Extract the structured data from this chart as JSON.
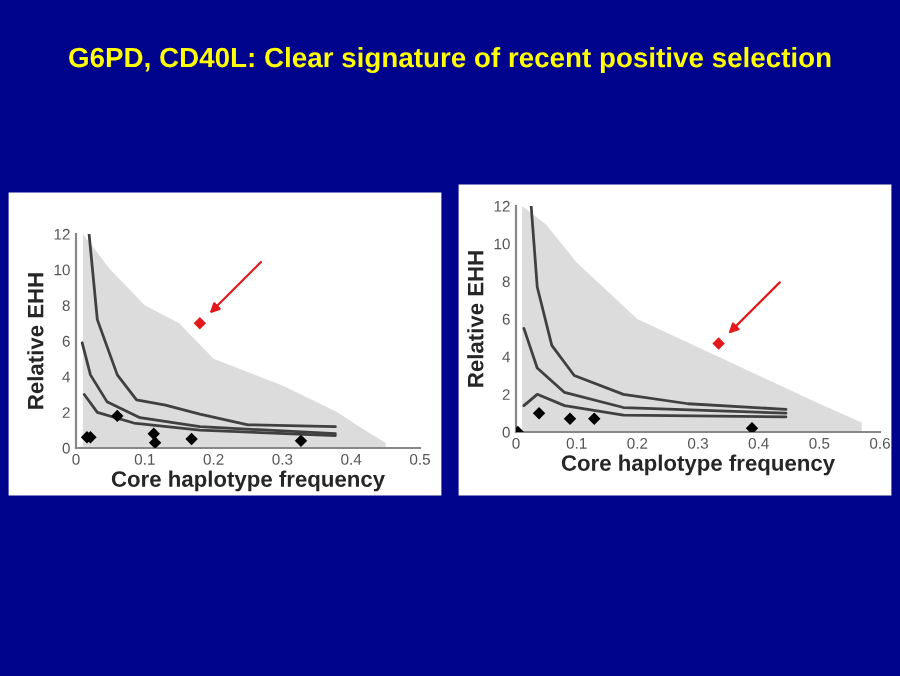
{
  "chart_data": [
    {
      "type": "scatter",
      "title": "G6PD, CD40L: Clear signature of recent positive selection",
      "xlabel": "Core haplotype frequency",
      "ylabel": "Relative EHH",
      "xlim": [
        0,
        0.5
      ],
      "xticks": [
        0,
        0.1,
        0.2,
        0.3,
        0.4,
        0.5
      ],
      "ylim": [
        0,
        12
      ],
      "yticks": [
        0,
        2,
        4,
        6,
        8,
        10,
        12
      ],
      "grid": false,
      "legend": false,
      "series": [
        {
          "type": "area",
          "color": "#dcdcdc",
          "x": [
            0.01,
            0.05,
            0.1,
            0.15,
            0.2,
            0.3,
            0.38,
            0.42,
            0.45
          ],
          "values": [
            12,
            10,
            8,
            7,
            5,
            3.5,
            2,
            1,
            0.3
          ]
        },
        {
          "type": "line",
          "color": "#404040",
          "x": [
            0.019,
            0.031,
            0.06,
            0.088,
            0.13,
            0.18,
            0.25,
            0.377
          ],
          "values": [
            12,
            7.2,
            4.1,
            2.7,
            2.4,
            1.9,
            1.3,
            1.2
          ]
        },
        {
          "type": "line",
          "color": "#404040",
          "x": [
            0.009,
            0.021,
            0.045,
            0.093,
            0.18,
            0.377
          ],
          "values": [
            5.9,
            4.1,
            2.6,
            1.7,
            1.2,
            0.8
          ]
        },
        {
          "type": "line",
          "color": "#404040",
          "x": [
            0.012,
            0.031,
            0.084,
            0.18,
            0.377
          ],
          "values": [
            3.0,
            2.0,
            1.4,
            1.0,
            0.7
          ]
        },
        {
          "type": "scatter",
          "marker": "diamond",
          "color": "#000000",
          "x": [
            0.016,
            0.021,
            0.06,
            0.113,
            0.115,
            0.168,
            0.327
          ],
          "values": [
            0.6,
            0.6,
            1.8,
            0.8,
            0.3,
            0.5,
            0.4
          ]
        },
        {
          "type": "scatter",
          "marker": "diamond",
          "color": "#e31a1c",
          "x": [
            0.18
          ],
          "values": [
            7.0
          ]
        }
      ]
    },
    {
      "type": "scatter",
      "xlabel": "Core haplotype frequency",
      "ylabel": "Relative EHH",
      "xlim": [
        0,
        0.6
      ],
      "xticks": [
        0,
        0.1,
        0.2,
        0.3,
        0.4,
        0.5,
        0.6
      ],
      "ylim": [
        0,
        12
      ],
      "yticks": [
        0,
        2,
        4,
        6,
        8,
        10,
        12
      ],
      "grid": false,
      "legend": false,
      "series": [
        {
          "type": "area",
          "color": "#dcdcdc",
          "x": [
            0.01,
            0.05,
            0.1,
            0.2,
            0.3,
            0.4,
            0.5,
            0.57
          ],
          "values": [
            12,
            11,
            9,
            6,
            4.5,
            3,
            1.5,
            0.5
          ]
        },
        {
          "type": "line",
          "color": "#404040",
          "x": [
            0.025,
            0.035,
            0.059,
            0.096,
            0.177,
            0.284,
            0.445
          ],
          "values": [
            12,
            7.7,
            4.6,
            3.0,
            2.0,
            1.5,
            1.2
          ]
        },
        {
          "type": "line",
          "color": "#404040",
          "x": [
            0.013,
            0.035,
            0.08,
            0.177,
            0.445
          ],
          "values": [
            5.5,
            3.4,
            2.1,
            1.3,
            1.0
          ]
        },
        {
          "type": "line",
          "color": "#404040",
          "x": [
            0.013,
            0.035,
            0.08,
            0.177,
            0.445
          ],
          "values": [
            1.4,
            2.0,
            1.4,
            0.9,
            0.8
          ]
        },
        {
          "type": "scatter",
          "marker": "diamond",
          "color": "#000000",
          "x": [
            0.003,
            0.038,
            0.089,
            0.129,
            0.389
          ],
          "values": [
            0,
            1.0,
            0.7,
            0.7,
            0.2
          ]
        },
        {
          "type": "scatter",
          "marker": "diamond",
          "color": "#e31a1c",
          "x": [
            0.334
          ],
          "values": [
            4.7
          ]
        }
      ]
    }
  ]
}
